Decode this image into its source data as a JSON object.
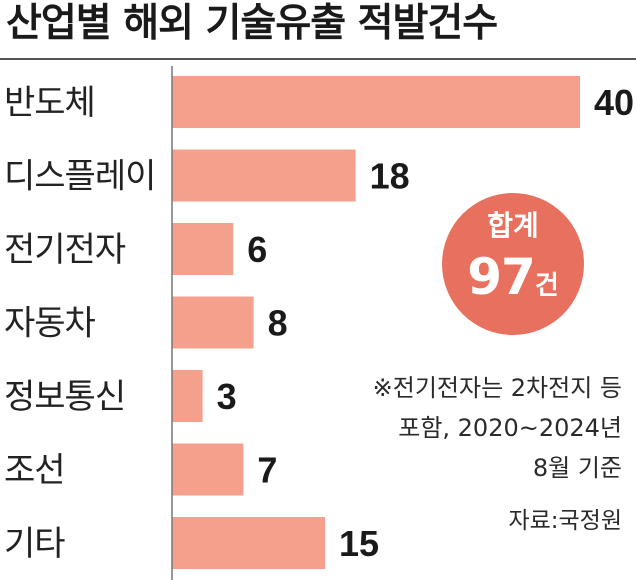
{
  "colors": {
    "bar": "#f4a08c",
    "badge": "#e8705f",
    "axis": "#777777",
    "text": "#222222"
  },
  "chart_data": {
    "type": "bar",
    "orientation": "horizontal",
    "title": "산업별 해외 기술유출 적발건수",
    "categories": [
      "반도체",
      "디스플레이",
      "전기전자",
      "자동차",
      "정보통신",
      "조선",
      "기타"
    ],
    "values": [
      40,
      18,
      6,
      8,
      3,
      7,
      15
    ],
    "xlim": [
      0,
      40
    ],
    "grid": false,
    "legend": "none",
    "annotations": {
      "total_label": "합계",
      "total_value": "97",
      "total_unit": "건",
      "note_lines": [
        "※전기전자는 2차전지 등",
        "포함, 2020~2024년",
        "8월 기준"
      ],
      "source": "자료:국정원"
    }
  }
}
